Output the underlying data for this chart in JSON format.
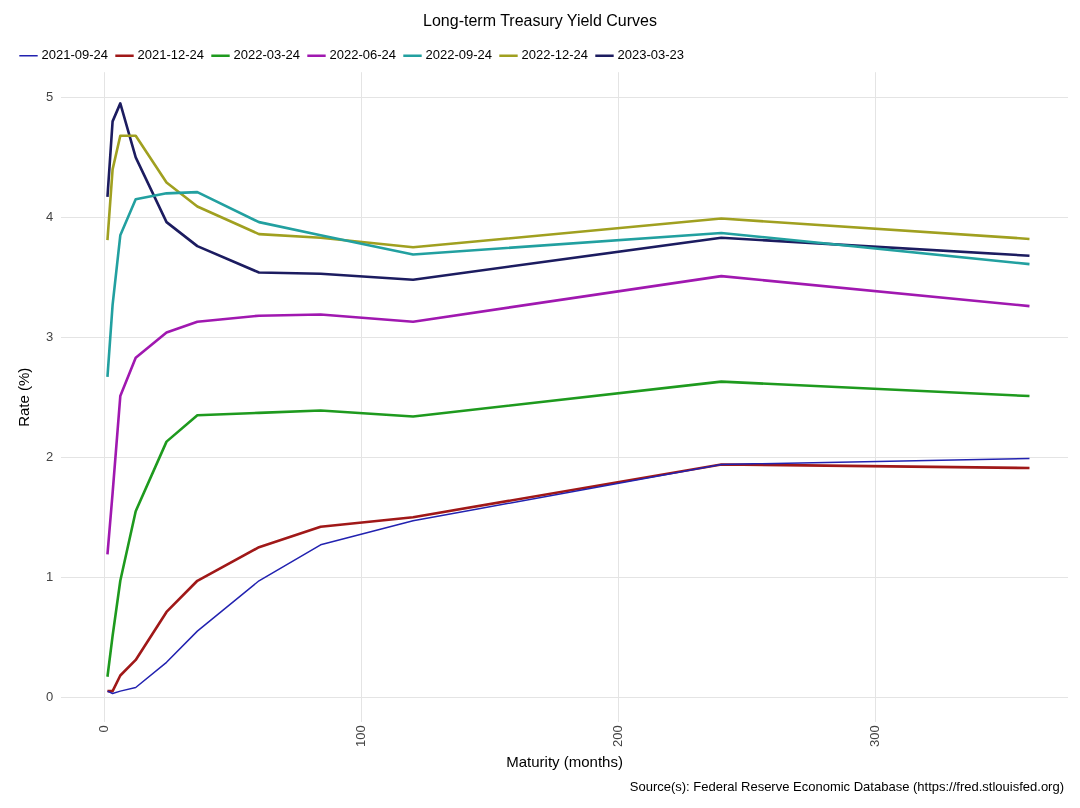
{
  "chart_data": {
    "type": "line",
    "title": "Long-term Treasury Yield Curves",
    "xlabel": "Maturity (months)",
    "ylabel": "Rate (%)",
    "annotations": [
      "Source(s): Federal Reserve Economic Database (https://fred.stlouisfed.org)"
    ],
    "x": [
      1,
      3,
      6,
      12,
      24,
      36,
      60,
      84,
      120,
      240,
      360
    ],
    "series": [
      {
        "name": "2021-09-24",
        "color": "#2222b0",
        "values": [
          0.05,
          0.03,
          0.05,
          0.08,
          0.29,
          0.55,
          0.97,
          1.27,
          1.47,
          1.94,
          1.99
        ]
      },
      {
        "name": "2021-12-24",
        "color": "#a01818",
        "values": [
          0.05,
          0.05,
          0.18,
          0.31,
          0.71,
          0.97,
          1.25,
          1.42,
          1.5,
          1.94,
          1.91
        ]
      },
      {
        "name": "2022-03-24",
        "color": "#1e9a1e",
        "values": [
          0.17,
          0.51,
          0.97,
          1.55,
          2.13,
          2.35,
          2.37,
          2.39,
          2.34,
          2.63,
          2.51
        ]
      },
      {
        "name": "2022-06-24",
        "color": "#a018b0",
        "values": [
          1.19,
          1.7,
          2.51,
          2.83,
          3.04,
          3.13,
          3.18,
          3.19,
          3.13,
          3.51,
          3.26
        ]
      },
      {
        "name": "2022-09-24",
        "color": "#22a0a0",
        "values": [
          2.67,
          3.27,
          3.85,
          4.15,
          4.2,
          4.21,
          3.96,
          3.85,
          3.69,
          3.87,
          3.61
        ]
      },
      {
        "name": "2022-12-24",
        "color": "#a0a020",
        "values": [
          3.81,
          4.4,
          4.68,
          4.68,
          4.29,
          4.09,
          3.86,
          3.83,
          3.75,
          3.99,
          3.82
        ]
      },
      {
        "name": "2023-03-23",
        "color": "#1c1c60",
        "values": [
          4.17,
          4.8,
          4.95,
          4.5,
          3.96,
          3.76,
          3.54,
          3.53,
          3.48,
          3.83,
          3.68
        ]
      }
    ],
    "xlim": [
      -17,
      375
    ],
    "xticks": [
      0,
      100,
      200,
      300
    ],
    "ylim": [
      -0.21,
      5.21
    ],
    "yticks": [
      0,
      1,
      2,
      3,
      4,
      5
    ],
    "grid": true,
    "legend": "top left",
    "marker": "none",
    "line_style": "solid"
  }
}
